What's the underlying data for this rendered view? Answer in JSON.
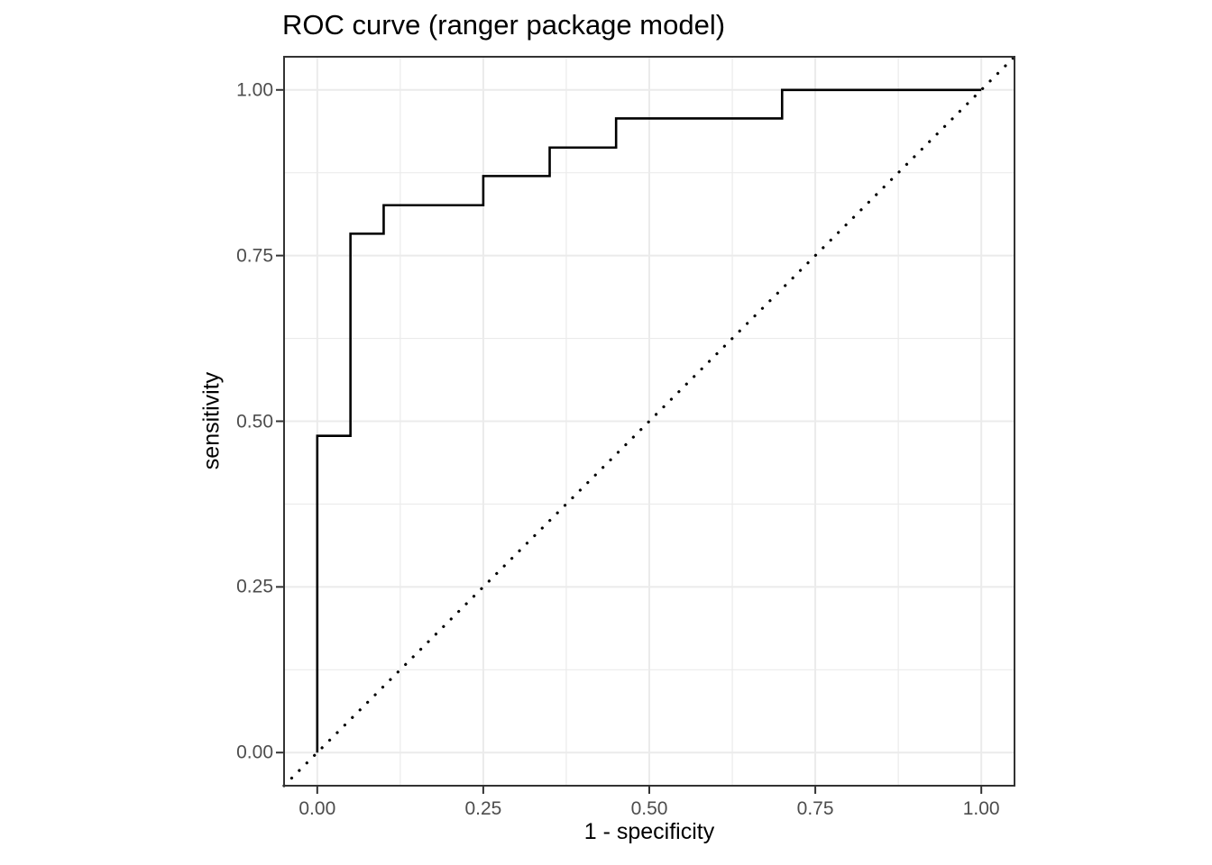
{
  "chart_data": {
    "type": "line",
    "subtype": "roc-step-curve",
    "title": "ROC curve (ranger package model)",
    "xlabel": "1 - specificity",
    "ylabel": "sensitivity",
    "xlim": [
      -0.05,
      1.05
    ],
    "ylim": [
      -0.05,
      1.05
    ],
    "x_ticks": [
      0,
      0.25,
      0.5,
      0.75,
      1.0
    ],
    "y_ticks": [
      0,
      0.25,
      0.5,
      0.75,
      1.0
    ],
    "x_tick_labels": [
      "0.00",
      "0.25",
      "0.50",
      "0.75",
      "1.00"
    ],
    "y_tick_labels": [
      "0.00",
      "0.25",
      "0.50",
      "0.75",
      "1.00"
    ],
    "x_minor_ticks": [
      0.125,
      0.375,
      0.625,
      0.875
    ],
    "y_minor_ticks": [
      0.125,
      0.375,
      0.625,
      0.875
    ],
    "grid": "major+minor",
    "legend": "none",
    "series": [
      {
        "name": "roc-step-curve",
        "style": "solid",
        "color": "#000000",
        "x": [
          0,
          0,
          0.05,
          0.05,
          0.1,
          0.1,
          0.25,
          0.25,
          0.35,
          0.35,
          0.45,
          0.45,
          0.7,
          0.7,
          1.0
        ],
        "y": [
          0,
          0.478,
          0.478,
          0.783,
          0.783,
          0.826,
          0.826,
          0.87,
          0.87,
          0.913,
          0.913,
          0.957,
          0.957,
          1.0,
          1.0
        ]
      },
      {
        "name": "chance-diagonal",
        "style": "dotted",
        "color": "#000000",
        "x": [
          -0.05,
          1.05
        ],
        "y": [
          -0.05,
          1.05
        ]
      }
    ],
    "colors": {
      "background": "#ffffff",
      "grid_line": "#ebebeb",
      "panel_border": "#333333",
      "tick_mark": "#333333",
      "tick_label": "#4d4d4d",
      "text": "#000000",
      "curve": "#000000"
    }
  }
}
